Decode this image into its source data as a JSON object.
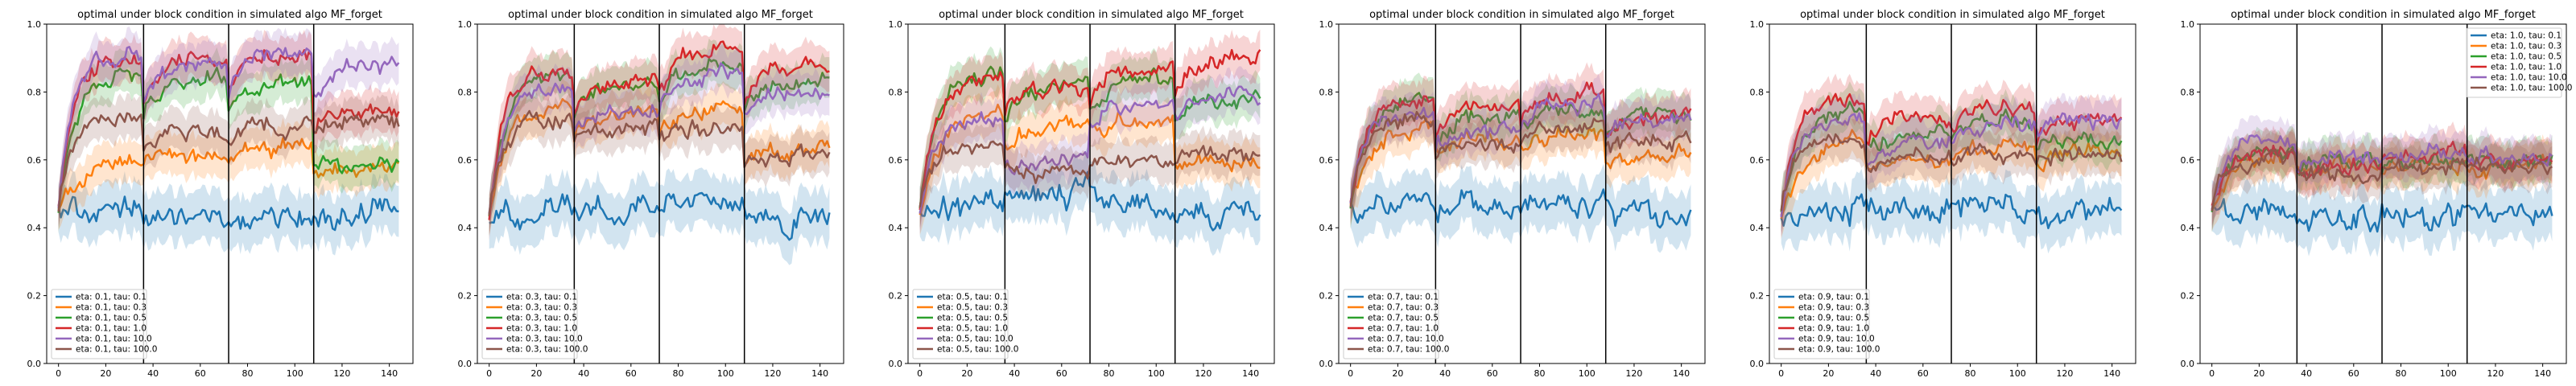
{
  "chart_data": [
    {
      "type": "line",
      "title": "optimal under block condition in simulated algo MF_forget",
      "xlabel": "",
      "ylabel": "",
      "xlim": [
        -5,
        150
      ],
      "ylim": [
        0.0,
        1.0
      ],
      "xticks": [
        0,
        20,
        40,
        60,
        80,
        100,
        120,
        140
      ],
      "yticks": [
        0.0,
        0.2,
        0.4,
        0.6,
        0.8,
        1.0
      ],
      "block_boundaries": [
        36,
        72,
        108
      ],
      "legend_position": "lower-left",
      "series": [
        {
          "name": "eta: 0.1, tau: 0.1",
          "color": "#1f77b4",
          "levels": [
            0.44,
            0.43,
            0.43,
            0.44
          ]
        },
        {
          "name": "eta: 0.1, tau: 0.3",
          "color": "#ff7f0e",
          "levels": [
            0.6,
            0.62,
            0.63,
            0.58
          ]
        },
        {
          "name": "eta: 0.1, tau: 0.5",
          "color": "#2ca02c",
          "levels": [
            0.86,
            0.84,
            0.82,
            0.58
          ]
        },
        {
          "name": "eta: 0.1, tau: 1.0",
          "color": "#d62728",
          "levels": [
            0.9,
            0.9,
            0.91,
            0.75
          ]
        },
        {
          "name": "eta: 0.1, tau: 10.0",
          "color": "#9467bd",
          "levels": [
            0.91,
            0.88,
            0.91,
            0.88
          ]
        },
        {
          "name": "eta: 0.1, tau: 100.0",
          "color": "#8c564b",
          "levels": [
            0.73,
            0.68,
            0.7,
            0.72
          ]
        }
      ]
    },
    {
      "type": "line",
      "title": "optimal under block condition in simulated algo MF_forget",
      "xlabel": "",
      "ylabel": "",
      "xlim": [
        -5,
        150
      ],
      "ylim": [
        0.0,
        1.0
      ],
      "xticks": [
        0,
        20,
        40,
        60,
        80,
        100,
        120,
        140
      ],
      "yticks": [
        0.0,
        0.2,
        0.4,
        0.6,
        0.8,
        1.0
      ],
      "block_boundaries": [
        36,
        72,
        108
      ],
      "legend_position": "lower-left",
      "series": [
        {
          "name": "eta: 0.3, tau: 0.1",
          "color": "#1f77b4",
          "levels": [
            0.48,
            0.46,
            0.47,
            0.43
          ]
        },
        {
          "name": "eta: 0.3, tau: 0.3",
          "color": "#ff7f0e",
          "levels": [
            0.78,
            0.74,
            0.75,
            0.63
          ]
        },
        {
          "name": "eta: 0.3, tau: 0.5",
          "color": "#2ca02c",
          "levels": [
            0.86,
            0.82,
            0.88,
            0.83
          ]
        },
        {
          "name": "eta: 0.3, tau: 1.0",
          "color": "#d62728",
          "levels": [
            0.88,
            0.84,
            0.93,
            0.88
          ]
        },
        {
          "name": "eta: 0.3, tau: 10.0",
          "color": "#9467bd",
          "levels": [
            0.8,
            0.75,
            0.85,
            0.8
          ]
        },
        {
          "name": "eta: 0.3, tau: 100.0",
          "color": "#8c564b",
          "levels": [
            0.72,
            0.7,
            0.7,
            0.62
          ]
        }
      ]
    },
    {
      "type": "line",
      "title": "optimal under block condition in simulated algo MF_forget",
      "xlabel": "",
      "ylabel": "",
      "xlim": [
        -5,
        150
      ],
      "ylim": [
        0.0,
        1.0
      ],
      "xticks": [
        0,
        20,
        40,
        60,
        80,
        100,
        120,
        140
      ],
      "yticks": [
        0.0,
        0.2,
        0.4,
        0.6,
        0.8,
        1.0
      ],
      "block_boundaries": [
        36,
        72,
        108
      ],
      "legend_position": "lower-left",
      "series": [
        {
          "name": "eta: 0.5, tau: 0.1",
          "color": "#1f77b4",
          "levels": [
            0.5,
            0.5,
            0.48,
            0.44
          ]
        },
        {
          "name": "eta: 0.5, tau: 0.3",
          "color": "#ff7f0e",
          "levels": [
            0.74,
            0.7,
            0.72,
            0.6
          ]
        },
        {
          "name": "eta: 0.5, tau: 0.5",
          "color": "#2ca02c",
          "levels": [
            0.86,
            0.82,
            0.84,
            0.78
          ]
        },
        {
          "name": "eta: 0.5, tau: 1.0",
          "color": "#d62728",
          "levels": [
            0.84,
            0.82,
            0.88,
            0.9
          ]
        },
        {
          "name": "eta: 0.5, tau: 10.0",
          "color": "#9467bd",
          "levels": [
            0.72,
            0.6,
            0.76,
            0.78
          ]
        },
        {
          "name": "eta: 0.5, tau: 100.0",
          "color": "#8c564b",
          "levels": [
            0.64,
            0.56,
            0.6,
            0.62
          ]
        }
      ]
    },
    {
      "type": "line",
      "title": "optimal under block condition in simulated algo MF_forget",
      "xlabel": "",
      "ylabel": "",
      "xlim": [
        -5,
        150
      ],
      "ylim": [
        0.0,
        1.0
      ],
      "xticks": [
        0,
        20,
        40,
        60,
        80,
        100,
        120,
        140
      ],
      "yticks": [
        0.0,
        0.2,
        0.4,
        0.6,
        0.8,
        1.0
      ],
      "block_boundaries": [
        36,
        72,
        108
      ],
      "legend_position": "lower-left",
      "series": [
        {
          "name": "eta: 0.7, tau: 0.1",
          "color": "#1f77b4",
          "levels": [
            0.48,
            0.46,
            0.47,
            0.44
          ]
        },
        {
          "name": "eta: 0.7, tau: 0.3",
          "color": "#ff7f0e",
          "levels": [
            0.7,
            0.66,
            0.68,
            0.62
          ]
        },
        {
          "name": "eta: 0.7, tau: 0.5",
          "color": "#2ca02c",
          "levels": [
            0.78,
            0.72,
            0.76,
            0.74
          ]
        },
        {
          "name": "eta: 0.7, tau: 1.0",
          "color": "#d62728",
          "levels": [
            0.78,
            0.76,
            0.8,
            0.72
          ]
        },
        {
          "name": "eta: 0.7, tau: 10.0",
          "color": "#9467bd",
          "levels": [
            0.74,
            0.68,
            0.76,
            0.72
          ]
        },
        {
          "name": "eta: 0.7, tau: 100.0",
          "color": "#8c564b",
          "levels": [
            0.72,
            0.64,
            0.7,
            0.66
          ]
        }
      ]
    },
    {
      "type": "line",
      "title": "optimal under block condition in simulated algo MF_forget",
      "xlabel": "",
      "ylabel": "",
      "xlim": [
        -5,
        150
      ],
      "ylim": [
        0.0,
        1.0
      ],
      "xticks": [
        0,
        20,
        40,
        60,
        80,
        100,
        120,
        140
      ],
      "yticks": [
        0.0,
        0.2,
        0.4,
        0.6,
        0.8,
        1.0
      ],
      "block_boundaries": [
        36,
        72,
        108
      ],
      "legend_position": "lower-left",
      "series": [
        {
          "name": "eta: 0.9, tau: 0.1",
          "color": "#1f77b4",
          "levels": [
            0.47,
            0.45,
            0.46,
            0.44
          ]
        },
        {
          "name": "eta: 0.9, tau: 0.3",
          "color": "#ff7f0e",
          "levels": [
            0.66,
            0.6,
            0.64,
            0.62
          ]
        },
        {
          "name": "eta: 0.9, tau: 0.5",
          "color": "#2ca02c",
          "levels": [
            0.74,
            0.68,
            0.72,
            0.66
          ]
        },
        {
          "name": "eta: 0.9, tau: 1.0",
          "color": "#d62728",
          "levels": [
            0.78,
            0.72,
            0.76,
            0.72
          ]
        },
        {
          "name": "eta: 0.9, tau: 10.0",
          "color": "#9467bd",
          "levels": [
            0.72,
            0.64,
            0.7,
            0.72
          ]
        },
        {
          "name": "eta: 0.9, tau: 100.0",
          "color": "#8c564b",
          "levels": [
            0.66,
            0.6,
            0.62,
            0.62
          ]
        }
      ]
    },
    {
      "type": "line",
      "title": "optimal under block condition in simulated algo MF_forget",
      "xlabel": "",
      "ylabel": "",
      "xlim": [
        -5,
        150
      ],
      "ylim": [
        0.0,
        1.0
      ],
      "xticks": [
        0,
        20,
        40,
        60,
        80,
        100,
        120,
        140
      ],
      "yticks": [
        0.0,
        0.2,
        0.4,
        0.6,
        0.8,
        1.0
      ],
      "block_boundaries": [
        36,
        72,
        108
      ],
      "legend_position": "top-right",
      "series": [
        {
          "name": "eta: 1.0, tau: 0.1",
          "color": "#1f77b4",
          "levels": [
            0.46,
            0.42,
            0.44,
            0.44
          ]
        },
        {
          "name": "eta: 1.0, tau: 0.3",
          "color": "#ff7f0e",
          "levels": [
            0.62,
            0.58,
            0.58,
            0.58
          ]
        },
        {
          "name": "eta: 1.0, tau: 0.5",
          "color": "#2ca02c",
          "levels": [
            0.64,
            0.6,
            0.6,
            0.6
          ]
        },
        {
          "name": "eta: 1.0, tau: 1.0",
          "color": "#d62728",
          "levels": [
            0.62,
            0.58,
            0.62,
            0.6
          ]
        },
        {
          "name": "eta: 1.0, tau: 10.0",
          "color": "#9467bd",
          "levels": [
            0.66,
            0.6,
            0.62,
            0.62
          ]
        },
        {
          "name": "eta: 1.0, tau: 100.0",
          "color": "#8c564b",
          "levels": [
            0.6,
            0.56,
            0.58,
            0.58
          ]
        }
      ]
    }
  ]
}
